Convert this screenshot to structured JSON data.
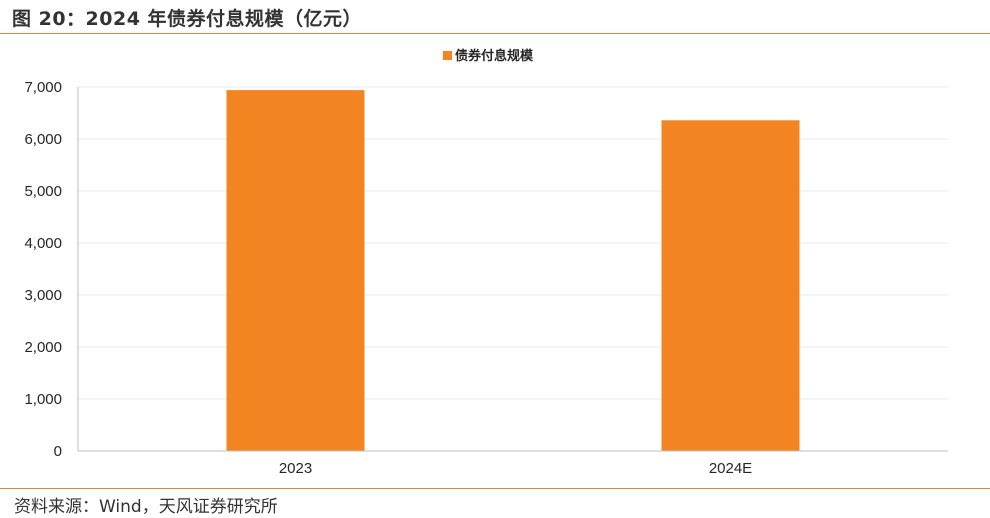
{
  "figure": {
    "title": "图 20：2024 年债券付息规模（亿元）",
    "source": "资料来源：Wind，天风证券研究所"
  },
  "colors": {
    "accent": "#d9893a",
    "bar": "#f28421",
    "grid": "#e8e8e8",
    "axis": "#bfbfbf"
  },
  "chart_data": {
    "type": "bar",
    "categories": [
      "2023",
      "2024E"
    ],
    "series": [
      {
        "name": "债券付息规模",
        "values": [
          6940,
          6360
        ]
      }
    ],
    "yticks": [
      "0",
      "1,000",
      "2,000",
      "3,000",
      "4,000",
      "5,000",
      "6,000",
      "7,000"
    ],
    "ylim": [
      0,
      7000
    ],
    "grid": true,
    "legend_position": "top-center",
    "xlabel": "",
    "ylabel": ""
  }
}
